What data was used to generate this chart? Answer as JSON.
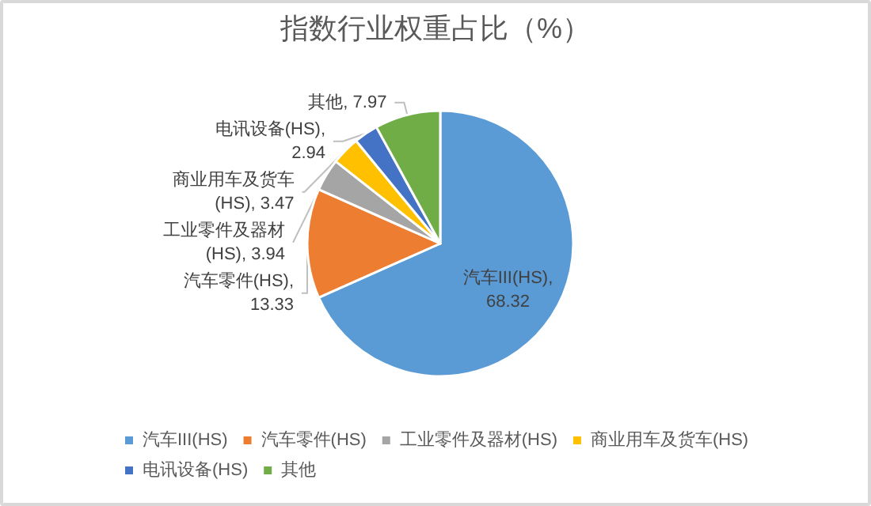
{
  "chart_data": {
    "type": "pie",
    "title": "指数行业权重占比（%）",
    "categories": [
      "汽车III(HS)",
      "汽车零件(HS)",
      "工业零件及器材(HS)",
      "商业用车及货车(HS)",
      "电讯设备(HS)",
      "其他"
    ],
    "values": [
      68.32,
      13.33,
      3.94,
      3.47,
      2.94,
      7.97
    ],
    "colors": [
      "#5b9bd5",
      "#ed7d31",
      "#a5a5a5",
      "#ffc000",
      "#4472c4",
      "#70ad47"
    ],
    "value_labels": [
      "汽车III(HS),\n68.32",
      "汽车零件(HS),\n13.33",
      "工业零件及器材\n(HS), 3.94",
      "商业用车及货车\n(HS), 3.47",
      "电讯设备(HS),\n2.94",
      "其他, 7.97"
    ],
    "legend": "bottom"
  }
}
